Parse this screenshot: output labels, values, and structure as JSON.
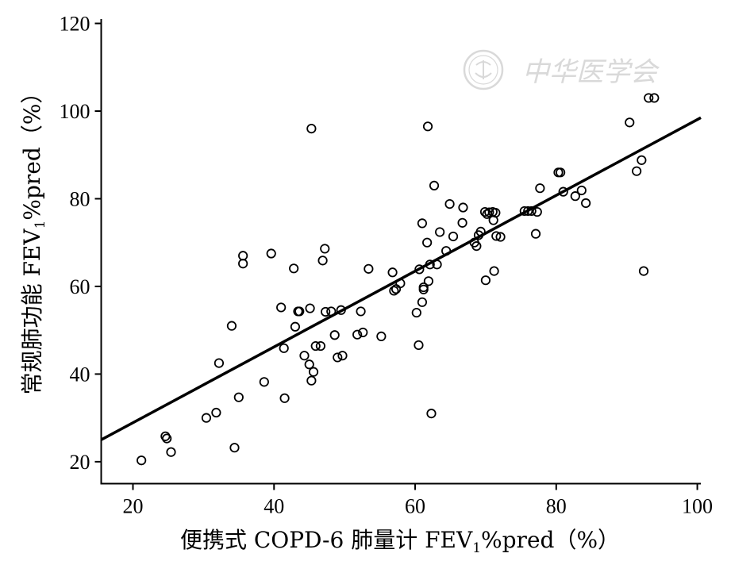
{
  "watermark": {
    "text": "中华医学会"
  },
  "chart_data": {
    "type": "scatter",
    "title": "",
    "xlabel_main": "便携式 COPD-6 肺量计 FEV",
    "xlabel_sub": "1",
    "xlabel_tail": "%pred（%）",
    "ylabel_main": "常规肺功能 FEV",
    "ylabel_sub": "1",
    "ylabel_tail": "%pred（%）",
    "xlim": [
      15.5,
      100.5
    ],
    "ylim": [
      15,
      121
    ],
    "xticks": [
      20,
      40,
      60,
      80,
      100
    ],
    "yticks": [
      20,
      40,
      60,
      80,
      100,
      120
    ],
    "grid": false,
    "regression_line": {
      "x": [
        15.5,
        100.5
      ],
      "y": [
        25.0,
        98.5
      ]
    },
    "points": [
      [
        21.2,
        20.3
      ],
      [
        24.6,
        25.8
      ],
      [
        24.8,
        25.3
      ],
      [
        25.4,
        22.2
      ],
      [
        30.4,
        30.0
      ],
      [
        31.8,
        31.2
      ],
      [
        32.2,
        42.5
      ],
      [
        34.0,
        51.0
      ],
      [
        34.4,
        23.2
      ],
      [
        35.0,
        34.7
      ],
      [
        35.6,
        65.2
      ],
      [
        35.6,
        67.0
      ],
      [
        38.6,
        38.2
      ],
      [
        39.6,
        67.5
      ],
      [
        41.0,
        55.2
      ],
      [
        41.4,
        45.9
      ],
      [
        41.5,
        34.5
      ],
      [
        42.8,
        64.1
      ],
      [
        43.0,
        50.8
      ],
      [
        43.4,
        54.3
      ],
      [
        43.6,
        54.3
      ],
      [
        44.3,
        44.2
      ],
      [
        45.0,
        42.2
      ],
      [
        45.1,
        55.0
      ],
      [
        45.3,
        38.5
      ],
      [
        45.3,
        96.0
      ],
      [
        45.6,
        40.5
      ],
      [
        45.9,
        46.4
      ],
      [
        46.6,
        46.4
      ],
      [
        46.9,
        65.9
      ],
      [
        47.2,
        68.6
      ],
      [
        47.3,
        54.2
      ],
      [
        48.1,
        54.3
      ],
      [
        48.6,
        48.9
      ],
      [
        49.0,
        43.8
      ],
      [
        49.5,
        54.6
      ],
      [
        49.7,
        44.2
      ],
      [
        51.8,
        49.0
      ],
      [
        52.3,
        54.3
      ],
      [
        52.6,
        49.5
      ],
      [
        53.4,
        64.0
      ],
      [
        55.2,
        48.6
      ],
      [
        56.8,
        63.2
      ],
      [
        57.0,
        59.0
      ],
      [
        57.3,
        59.4
      ],
      [
        57.9,
        60.7
      ],
      [
        60.2,
        54.0
      ],
      [
        60.5,
        46.6
      ],
      [
        60.6,
        63.9
      ],
      [
        61.0,
        74.4
      ],
      [
        61.0,
        56.4
      ],
      [
        61.2,
        59.3
      ],
      [
        61.2,
        59.8
      ],
      [
        61.7,
        70.0
      ],
      [
        61.8,
        96.5
      ],
      [
        61.9,
        61.2
      ],
      [
        62.1,
        65.0
      ],
      [
        62.3,
        31.0
      ],
      [
        62.7,
        83.0
      ],
      [
        63.1,
        65.0
      ],
      [
        63.5,
        72.4
      ],
      [
        64.4,
        68.1
      ],
      [
        64.9,
        78.8
      ],
      [
        65.4,
        71.4
      ],
      [
        66.7,
        74.5
      ],
      [
        66.8,
        78.0
      ],
      [
        68.4,
        70.0
      ],
      [
        68.7,
        69.2
      ],
      [
        69.0,
        71.7
      ],
      [
        69.3,
        72.5
      ],
      [
        69.9,
        77.0
      ],
      [
        70.0,
        61.4
      ],
      [
        70.2,
        76.5
      ],
      [
        70.5,
        76.9
      ],
      [
        71.0,
        77.0
      ],
      [
        71.1,
        75.1
      ],
      [
        71.2,
        63.5
      ],
      [
        71.4,
        76.8
      ],
      [
        71.5,
        71.5
      ],
      [
        72.1,
        71.3
      ],
      [
        75.5,
        77.2
      ],
      [
        76.0,
        77.2
      ],
      [
        76.5,
        77.2
      ],
      [
        77.1,
        72.0
      ],
      [
        77.3,
        77.0
      ],
      [
        77.7,
        82.4
      ],
      [
        80.3,
        86.0
      ],
      [
        80.6,
        86.0
      ],
      [
        81.0,
        81.6
      ],
      [
        82.7,
        80.6
      ],
      [
        83.6,
        81.9
      ],
      [
        84.2,
        79.0
      ],
      [
        90.4,
        97.4
      ],
      [
        91.4,
        86.3
      ],
      [
        92.1,
        88.8
      ],
      [
        92.4,
        63.5
      ],
      [
        93.1,
        103.0
      ],
      [
        93.9,
        103.0
      ]
    ]
  }
}
